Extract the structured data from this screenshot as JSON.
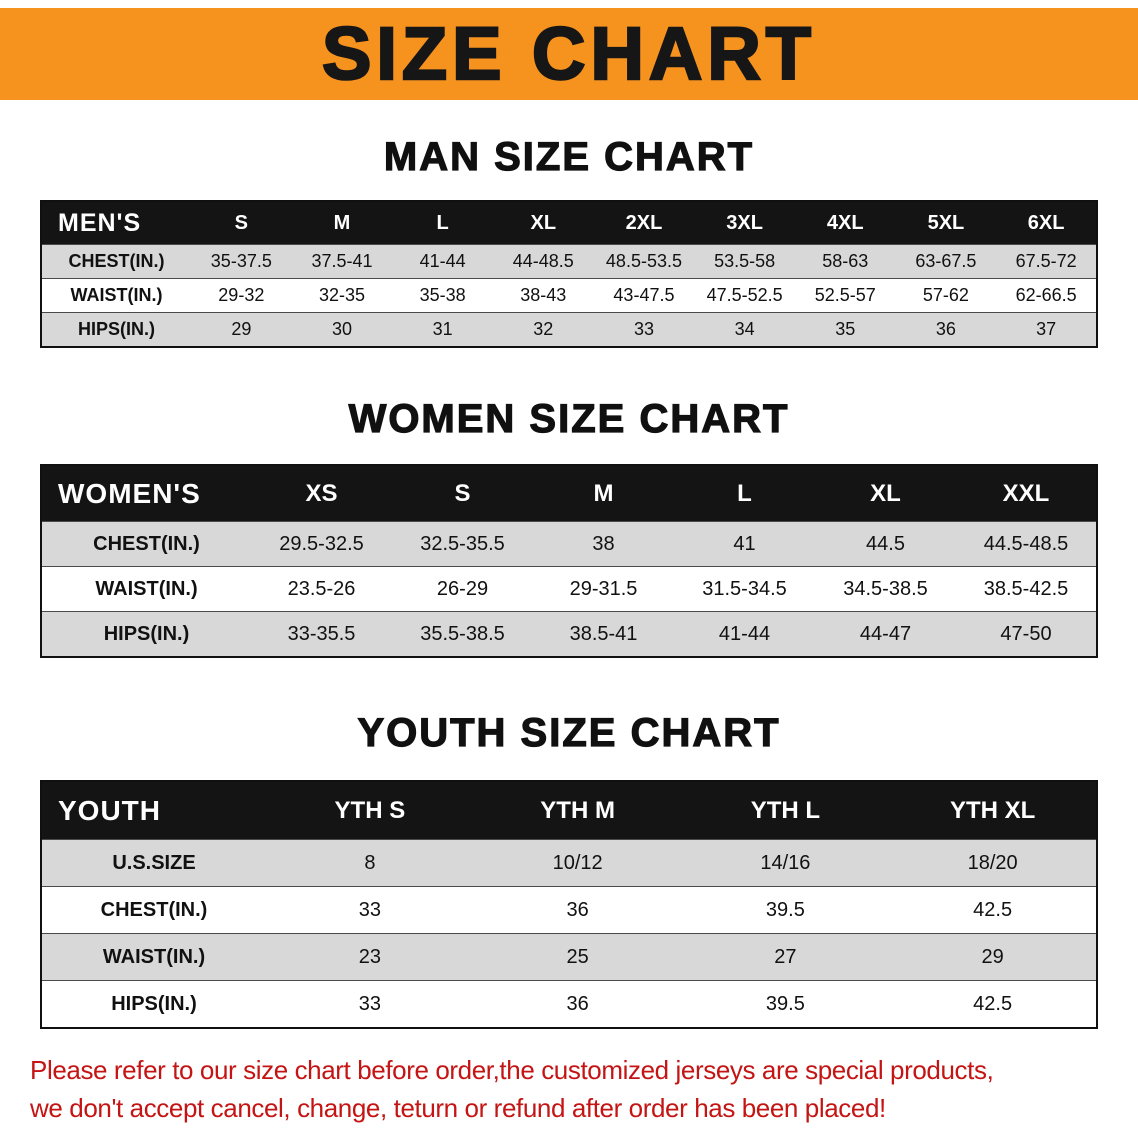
{
  "banner": {
    "title": "SIZE CHART",
    "bg_color": "#F6921E"
  },
  "colors": {
    "table_header_bg": "#141414",
    "shaded_row_bg": "#d8d8d8",
    "disclaimer_red": "#c41414"
  },
  "sections": [
    {
      "heading": "MAN SIZE CHART",
      "table": {
        "header": [
          "MEN'S",
          "S",
          "M",
          "L",
          "XL",
          "2XL",
          "3XL",
          "4XL",
          "5XL",
          "6XL"
        ],
        "rows": [
          {
            "label": "CHEST(IN.)",
            "values": [
              "35-37.5",
              "37.5-41",
              "41-44",
              "44-48.5",
              "48.5-53.5",
              "53.5-58",
              "58-63",
              "63-67.5",
              "67.5-72"
            ]
          },
          {
            "label": "WAIST(IN.)",
            "values": [
              "29-32",
              "32-35",
              "35-38",
              "38-43",
              "43-47.5",
              "47.5-52.5",
              "52.5-57",
              "57-62",
              "62-66.5"
            ]
          },
          {
            "label": "HIPS(IN.)",
            "values": [
              "29",
              "30",
              "31",
              "32",
              "33",
              "34",
              "35",
              "36",
              "37"
            ]
          }
        ]
      }
    },
    {
      "heading": "WOMEN SIZE CHART",
      "table": {
        "header": [
          "WOMEN'S",
          "XS",
          "S",
          "M",
          "L",
          "XL",
          "XXL"
        ],
        "rows": [
          {
            "label": "CHEST(IN.)",
            "values": [
              "29.5-32.5",
              "32.5-35.5",
              "38",
              "41",
              "44.5",
              "44.5-48.5"
            ]
          },
          {
            "label": "WAIST(IN.)",
            "values": [
              "23.5-26",
              "26-29",
              "29-31.5",
              "31.5-34.5",
              "34.5-38.5",
              "38.5-42.5"
            ]
          },
          {
            "label": "HIPS(IN.)",
            "values": [
              "33-35.5",
              "35.5-38.5",
              "38.5-41",
              "41-44",
              "44-47",
              "47-50"
            ]
          }
        ]
      }
    },
    {
      "heading": "YOUTH SIZE CHART",
      "table": {
        "header": [
          "YOUTH",
          "YTH S",
          "YTH M",
          "YTH L",
          "YTH XL"
        ],
        "rows": [
          {
            "label": "U.S.SIZE",
            "values": [
              "8",
              "10/12",
              "14/16",
              "18/20"
            ]
          },
          {
            "label": "CHEST(IN.)",
            "values": [
              "33",
              "36",
              "39.5",
              "42.5"
            ]
          },
          {
            "label": "WAIST(IN.)",
            "values": [
              "23",
              "25",
              "27",
              "29"
            ]
          },
          {
            "label": "HIPS(IN.)",
            "values": [
              "33",
              "36",
              "39.5",
              "42.5"
            ]
          }
        ]
      }
    }
  ],
  "disclaimer": {
    "color": "#c41414",
    "lines": [
      "Please refer to our size chart before order,the customized jerseys are special products,",
      "we don't accept cancel, change, teturn or refund after order has been placed!"
    ]
  }
}
